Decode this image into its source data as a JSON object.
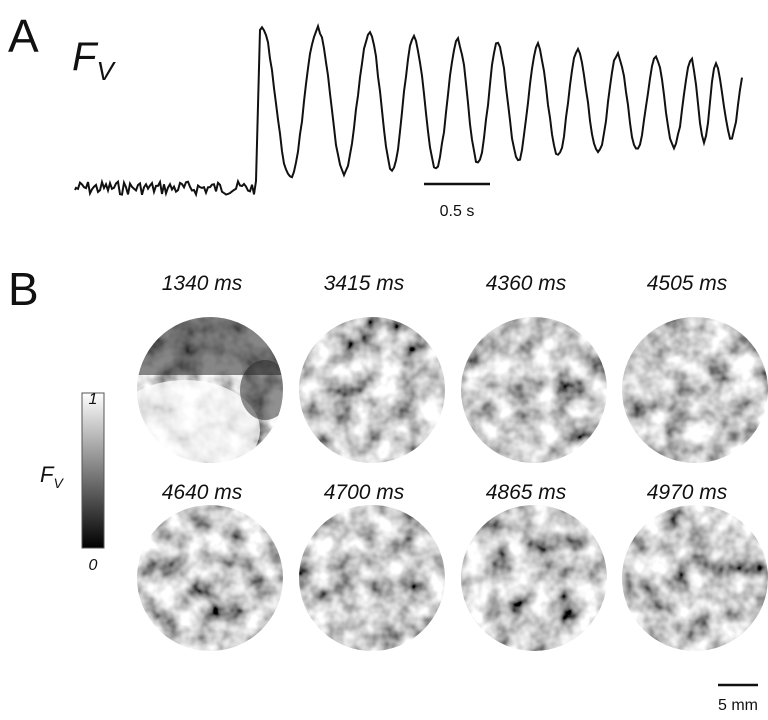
{
  "panels": [
    {
      "label": "A",
      "signal": {
        "symbol": "F",
        "subscript": "V"
      },
      "scale_bar": "0.5 s"
    },
    {
      "label": "B",
      "frames": [
        "1340 ms",
        "3415 ms",
        "4360 ms",
        "4505 ms",
        "4640 ms",
        "4700 ms",
        "4865 ms",
        "4970 ms"
      ],
      "colorbar": {
        "max": 1,
        "min": 0,
        "symbol": "F",
        "subscript": "V"
      },
      "scale_bar": "5 mm"
    }
  ]
}
